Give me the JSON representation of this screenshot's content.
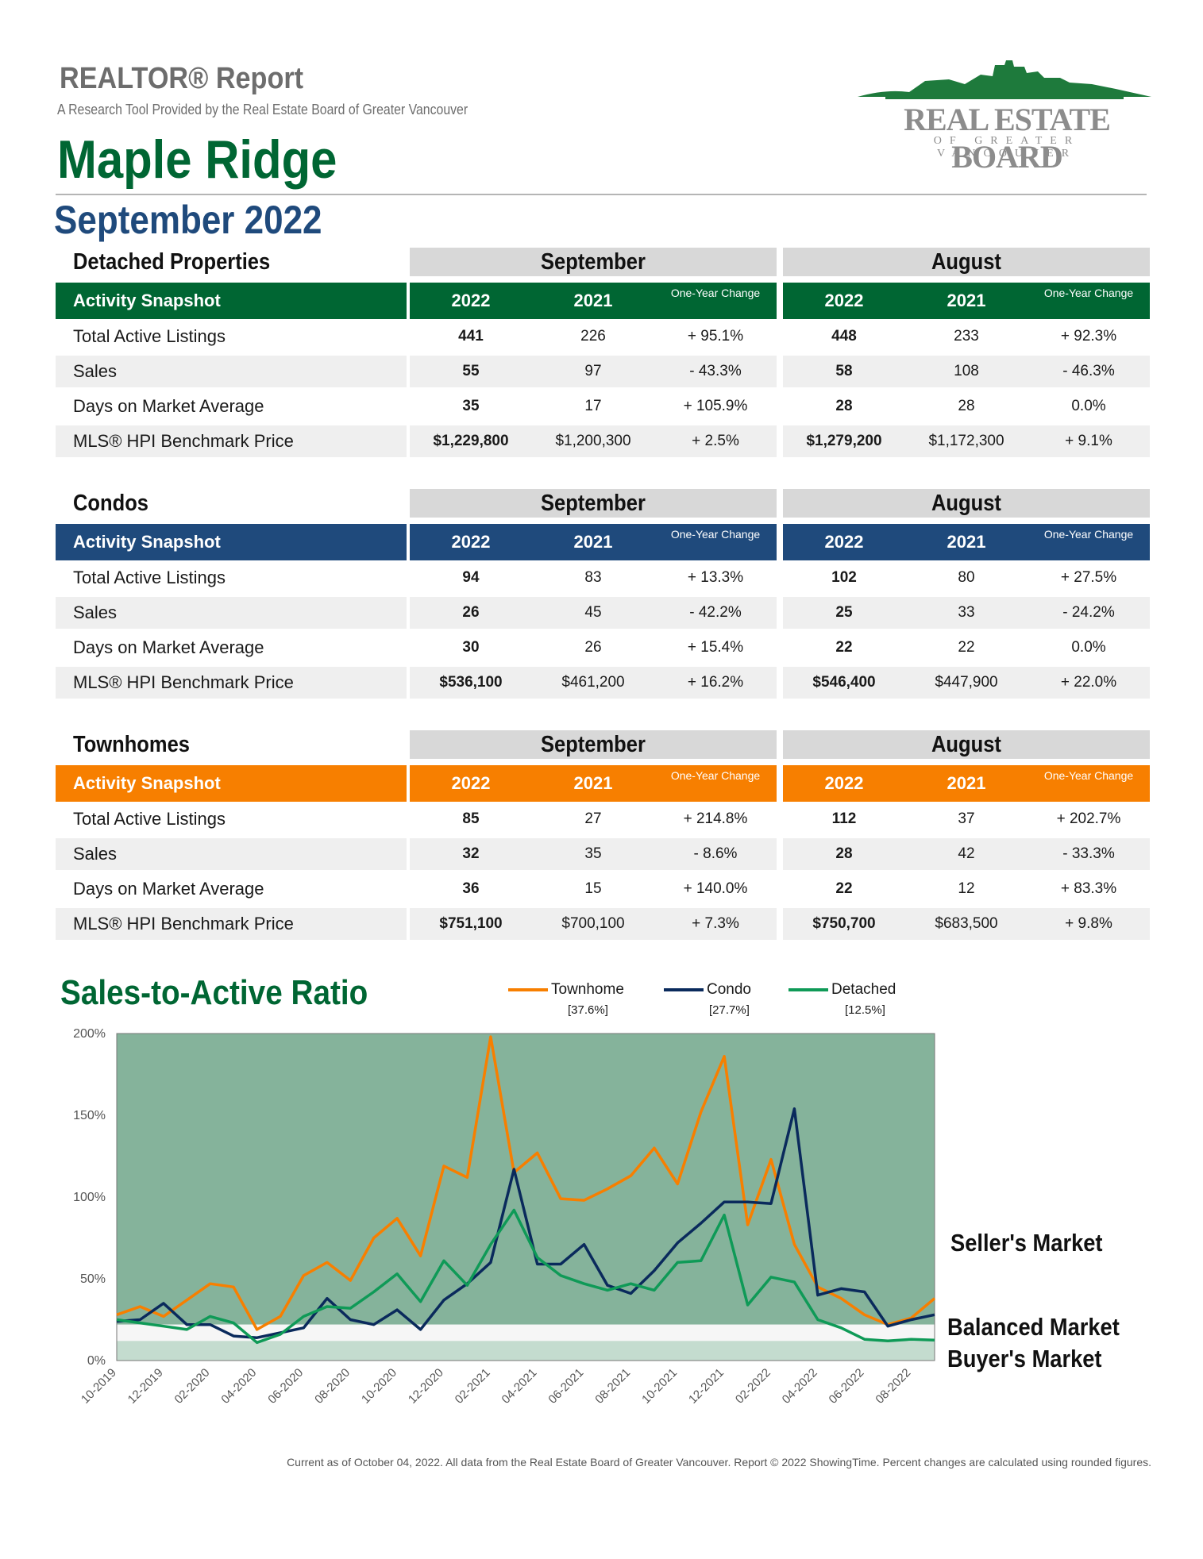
{
  "header": {
    "report_title": "REALTOR® Report",
    "subtitle": "A Research Tool Provided by the Real Estate Board of Greater Vancouver",
    "city": "Maple Ridge",
    "period": "September 2022",
    "logo_main": "REAL ESTATE BOARD",
    "logo_sub": "OF GREATER VANCOUVER"
  },
  "snapshot_label": "Activity Snapshot",
  "months": [
    "September",
    "August"
  ],
  "col_headers": [
    "2022",
    "2021",
    "One-Year Change"
  ],
  "sections": [
    {
      "name": "Detached Properties",
      "color": "#006633",
      "rows": [
        {
          "label": "Total Active Listings",
          "sep": [
            "441",
            "226",
            "+ 95.1%"
          ],
          "aug": [
            "448",
            "233",
            "+ 92.3%"
          ]
        },
        {
          "label": "Sales",
          "sep": [
            "55",
            "97",
            "- 43.3%"
          ],
          "aug": [
            "58",
            "108",
            "- 46.3%"
          ]
        },
        {
          "label": "Days on Market Average",
          "sep": [
            "35",
            "17",
            "+ 105.9%"
          ],
          "aug": [
            "28",
            "28",
            "0.0%"
          ]
        },
        {
          "label": "MLS® HPI Benchmark Price",
          "sep": [
            "$1,229,800",
            "$1,200,300",
            "+ 2.5%"
          ],
          "aug": [
            "$1,279,200",
            "$1,172,300",
            "+ 9.1%"
          ]
        }
      ]
    },
    {
      "name": "Condos",
      "color": "#1f4a7c",
      "rows": [
        {
          "label": "Total Active Listings",
          "sep": [
            "94",
            "83",
            "+ 13.3%"
          ],
          "aug": [
            "102",
            "80",
            "+ 27.5%"
          ]
        },
        {
          "label": "Sales",
          "sep": [
            "26",
            "45",
            "- 42.2%"
          ],
          "aug": [
            "25",
            "33",
            "- 24.2%"
          ]
        },
        {
          "label": "Days on Market Average",
          "sep": [
            "30",
            "26",
            "+ 15.4%"
          ],
          "aug": [
            "22",
            "22",
            "0.0%"
          ]
        },
        {
          "label": "MLS® HPI Benchmark Price",
          "sep": [
            "$536,100",
            "$461,200",
            "+ 16.2%"
          ],
          "aug": [
            "$546,400",
            "$447,900",
            "+ 22.0%"
          ]
        }
      ]
    },
    {
      "name": "Townhomes",
      "color": "#f77f00",
      "rows": [
        {
          "label": "Total Active Listings",
          "sep": [
            "85",
            "27",
            "+ 214.8%"
          ],
          "aug": [
            "112",
            "37",
            "+ 202.7%"
          ]
        },
        {
          "label": "Sales",
          "sep": [
            "32",
            "35",
            "- 8.6%"
          ],
          "aug": [
            "28",
            "42",
            "- 33.3%"
          ]
        },
        {
          "label": "Days on Market Average",
          "sep": [
            "36",
            "15",
            "+ 140.0%"
          ],
          "aug": [
            "22",
            "12",
            "+ 83.3%"
          ]
        },
        {
          "label": "MLS® HPI Benchmark Price",
          "sep": [
            "$751,100",
            "$700,100",
            "+ 7.3%"
          ],
          "aug": [
            "$750,700",
            "$683,500",
            "+ 9.8%"
          ]
        }
      ]
    }
  ],
  "chart_data": {
    "type": "line",
    "title": "Sales-to-Active Ratio",
    "x": [
      "10-2019",
      "11-2019",
      "12-2019",
      "01-2020",
      "02-2020",
      "03-2020",
      "04-2020",
      "05-2020",
      "06-2020",
      "07-2020",
      "08-2020",
      "09-2020",
      "10-2020",
      "11-2020",
      "12-2020",
      "01-2021",
      "02-2021",
      "03-2021",
      "04-2021",
      "05-2021",
      "06-2021",
      "07-2021",
      "08-2021",
      "09-2021",
      "10-2021",
      "11-2021",
      "12-2021",
      "01-2022",
      "02-2022",
      "03-2022",
      "04-2022",
      "05-2022",
      "06-2022",
      "07-2022",
      "08-2022",
      "09-2022"
    ],
    "xticks": [
      "10-2019",
      "12-2019",
      "02-2020",
      "04-2020",
      "06-2020",
      "08-2020",
      "10-2020",
      "12-2020",
      "02-2021",
      "04-2021",
      "06-2021",
      "08-2021",
      "10-2021",
      "12-2021",
      "02-2022",
      "04-2022",
      "06-2022",
      "08-2022"
    ],
    "yticks": [
      "0%",
      "50%",
      "100%",
      "150%",
      "200%"
    ],
    "ylim": [
      0,
      200
    ],
    "zones": {
      "buyers_max": 12,
      "balanced_max": 22
    },
    "zone_labels": [
      "Seller's Market",
      "Balanced Market",
      "Buyer's Market"
    ],
    "series": [
      {
        "name": "Townhome",
        "current": "[37.6%]",
        "color": "#f77f00",
        "values": [
          28,
          33,
          27,
          37,
          47,
          45,
          19,
          27,
          52,
          60,
          49,
          75,
          87,
          64,
          119,
          112,
          198,
          115,
          127,
          99,
          98,
          105,
          113,
          130,
          108,
          152,
          186,
          83,
          123,
          71,
          45,
          38,
          28,
          22,
          26,
          38
        ]
      },
      {
        "name": "Condo",
        "current": "[27.7%]",
        "color": "#0a2a5c",
        "values": [
          24,
          25,
          35,
          22,
          22,
          15,
          14,
          17,
          20,
          38,
          25,
          22,
          31,
          19,
          37,
          47,
          60,
          117,
          59,
          59,
          71,
          46,
          41,
          55,
          72,
          84,
          97,
          97,
          96,
          154,
          40,
          44,
          42,
          21,
          25,
          28
        ]
      },
      {
        "name": "Detached",
        "current": "[12.5%]",
        "color": "#0f9a57",
        "values": [
          25,
          23,
          21,
          19,
          27,
          23,
          11,
          16,
          27,
          33,
          32,
          42,
          53,
          36,
          61,
          46,
          71,
          92,
          63,
          52,
          47,
          43,
          47,
          43,
          60,
          61,
          89,
          34,
          51,
          48,
          25,
          20,
          13,
          12,
          13,
          12.5
        ]
      }
    ]
  },
  "footer": "Current as of October 04, 2022. All data from the Real Estate Board of Greater Vancouver. Report © 2022 ShowingTime. Percent changes are calculated using rounded figures."
}
